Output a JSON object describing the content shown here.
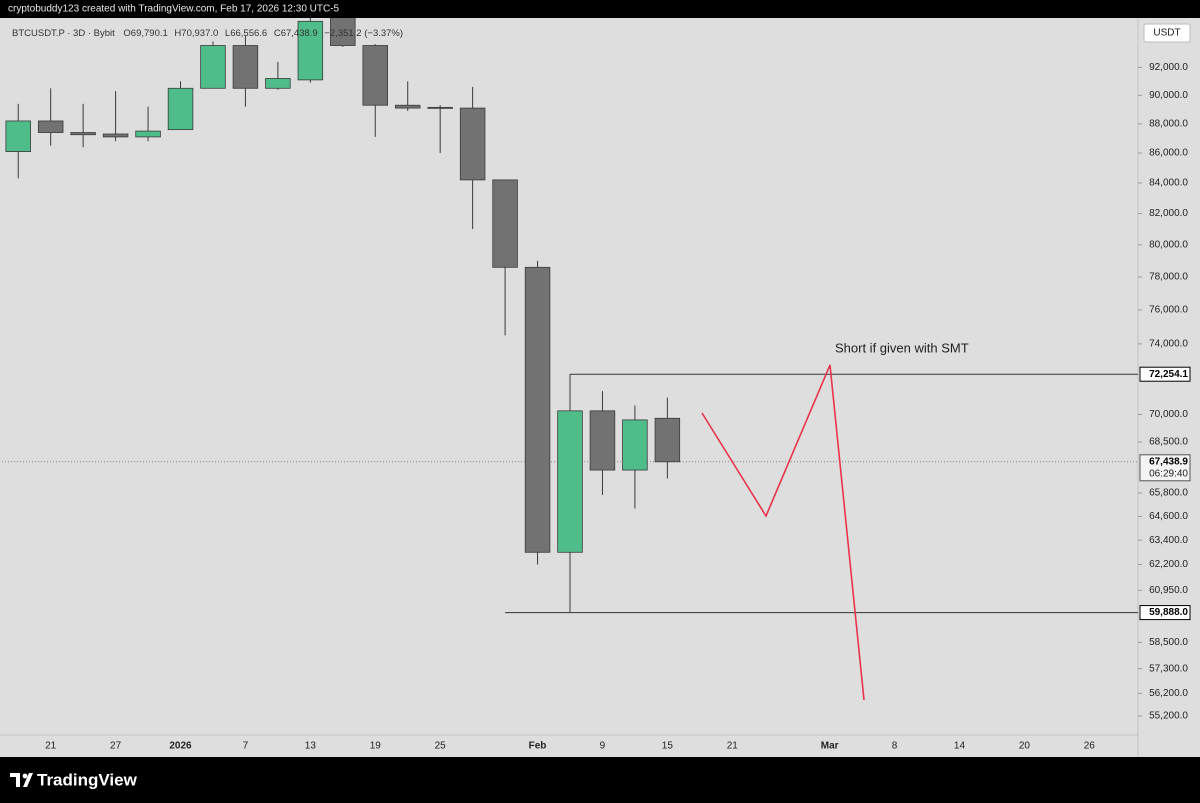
{
  "top_bar": "cryptobuddy123 created with TradingView.com, Feb 17, 2026 12:30 UTC-5",
  "brand": "TradingView",
  "currency": "USDT",
  "legend": {
    "symbol": "BTCUSDT.P · 3D · Bybit",
    "items": [
      {
        "key": "O",
        "text": "69,790.1"
      },
      {
        "key": "H",
        "text": "70,937.0"
      },
      {
        "key": "L",
        "text": "66,556.6"
      },
      {
        "key": "C",
        "text": "67,438.9"
      }
    ],
    "change": "−2,351.2 (−3.37%)"
  },
  "chart_data": {
    "type": "candlestick",
    "log_scale": true,
    "up_color": "#4fbd8a",
    "down_color": "#727272",
    "wick_color": "#3a3a3a",
    "categories": [
      null,
      "21",
      null,
      "27",
      null,
      "2026",
      null,
      "7",
      null,
      "13",
      null,
      "19",
      null,
      "25",
      null,
      null,
      "Feb",
      null,
      "9",
      null,
      "15",
      null,
      "21",
      null,
      null,
      "Mar",
      null,
      "8",
      null,
      "14",
      null,
      "20",
      null,
      "26",
      null
    ],
    "series": [
      {
        "name": "open",
        "values": [
          86100,
          88200,
          87400,
          87300,
          87100,
          87600,
          90500,
          93600,
          90500,
          91100,
          95700,
          93600,
          89300,
          89150,
          89100,
          84200,
          78600,
          62800,
          70200,
          67000,
          69790.1,
          null,
          null,
          null,
          null,
          null,
          null,
          null,
          null,
          null,
          null,
          null,
          null,
          null,
          null
        ]
      },
      {
        "name": "high",
        "values": [
          89400,
          90500,
          89400,
          90300,
          89200,
          91000,
          93900,
          94300,
          92400,
          96000,
          96200,
          93700,
          91000,
          89300,
          90600,
          84200,
          79000,
          72254.1,
          71300,
          70500,
          70937.0,
          null,
          null,
          null,
          null,
          null,
          null,
          null,
          null,
          null,
          null,
          null,
          null,
          null,
          null
        ]
      },
      {
        "name": "low",
        "values": [
          84300,
          86500,
          86400,
          86800,
          86800,
          87600,
          90500,
          89200,
          90400,
          90900,
          93500,
          87100,
          88900,
          86000,
          81000,
          74500,
          62200,
          59888.0,
          65700,
          65000,
          66556.6,
          null,
          null,
          null,
          null,
          null,
          null,
          null,
          null,
          null,
          null,
          null,
          null,
          null,
          null
        ]
      },
      {
        "name": "close",
        "values": [
          88200,
          87400,
          87250,
          87100,
          87500,
          90500,
          93600,
          90500,
          91200,
          95400,
          93600,
          89300,
          89100,
          89100,
          84200,
          78600,
          62800,
          70200,
          67000,
          69700,
          67438.9,
          null,
          null,
          null,
          null,
          null,
          null,
          null,
          null,
          null,
          null,
          null,
          null,
          null,
          null
        ]
      }
    ],
    "ylim": [
      53450,
      95650
    ],
    "yticks": [
      {
        "value": 92000,
        "label": "92,000.0"
      },
      {
        "value": 90000,
        "label": "90,000.0"
      },
      {
        "value": 88000,
        "label": "88,000.0"
      },
      {
        "value": 86000,
        "label": "86,000.0"
      },
      {
        "value": 84000,
        "label": "84,000.0"
      },
      {
        "value": 82000,
        "label": "82,000.0"
      },
      {
        "value": 80000,
        "label": "80,000.0"
      },
      {
        "value": 78000,
        "label": "78,000.0"
      },
      {
        "value": 76000,
        "label": "76,000.0"
      },
      {
        "value": 74000,
        "label": "74,000.0"
      },
      {
        "value": 70000,
        "label": "70,000.0"
      },
      {
        "value": 68500,
        "label": "68,500.0"
      },
      {
        "value": 65800,
        "label": "65,800.0"
      },
      {
        "value": 64600,
        "label": "64,600.0"
      },
      {
        "value": 63400,
        "label": "63,400.0"
      },
      {
        "value": 62200,
        "label": "62,200.0"
      },
      {
        "value": 60950,
        "label": "60,950.0"
      },
      {
        "value": 58500,
        "label": "58,500.0"
      },
      {
        "value": 57300,
        "label": "57,300.0"
      },
      {
        "value": 56200,
        "label": "56,200.0"
      },
      {
        "value": 55200,
        "label": "55,200.0"
      }
    ],
    "levels": [
      {
        "value": 72254.1,
        "label": "72,254.1"
      },
      {
        "value": 59888.0,
        "label": "59,888.0"
      }
    ],
    "last_price": {
      "value": 67438.9,
      "label": "67,438.9",
      "countdown": "06:29:40"
    },
    "annotation": "Short if given with SMT"
  }
}
